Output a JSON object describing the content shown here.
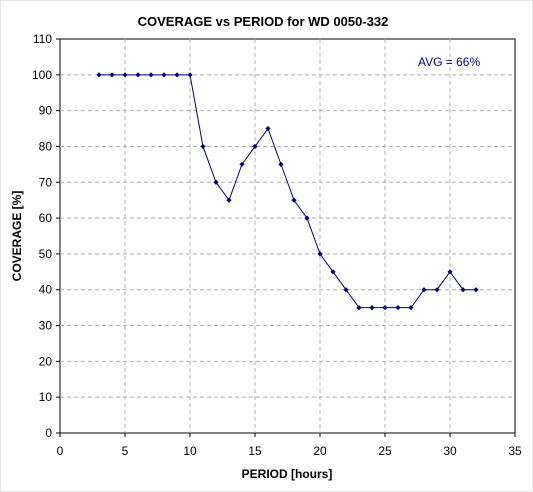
{
  "chart_data": {
    "type": "line",
    "title": "COVERAGE vs PERIOD for WD 0050-332",
    "xlabel": "PERIOD [hours]",
    "ylabel": "COVERAGE [%]",
    "xlim": [
      0,
      35
    ],
    "ylim": [
      0,
      110
    ],
    "x_ticks": [
      0,
      5,
      10,
      15,
      20,
      25,
      30,
      35
    ],
    "y_ticks": [
      0,
      10,
      20,
      30,
      40,
      50,
      60,
      70,
      80,
      90,
      100,
      110
    ],
    "grid": true,
    "grid_style": "dashed",
    "annotation": "AVG = 66%",
    "series": [
      {
        "x": [
          3,
          4,
          5,
          6,
          7,
          8,
          9,
          10,
          11,
          12,
          13,
          14,
          15,
          16,
          17,
          18,
          19,
          20,
          21,
          22,
          23,
          24,
          25,
          26,
          27,
          28,
          29,
          30,
          31,
          32
        ],
        "y": [
          100,
          100,
          100,
          100,
          100,
          100,
          100,
          100,
          80,
          70,
          65,
          75,
          80,
          85,
          75,
          65,
          60,
          50,
          45,
          40,
          35,
          35,
          35,
          35,
          35,
          40,
          40,
          45,
          40,
          40
        ],
        "color": "#000080"
      }
    ]
  }
}
